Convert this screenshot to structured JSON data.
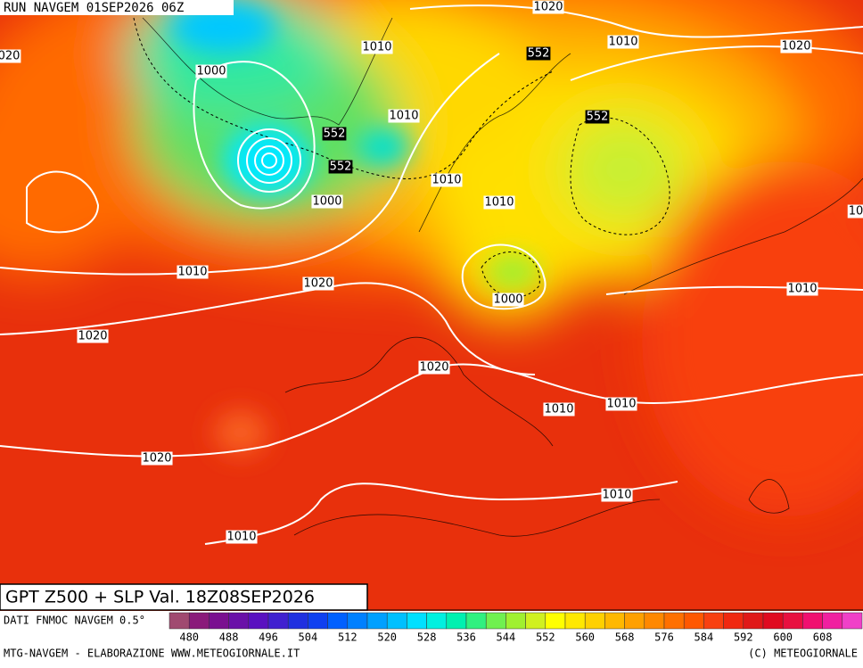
{
  "header": {
    "run": "RUN NAVGEM 01SEP2026 06Z"
  },
  "map": {
    "title": "GPT Z500 + SLP Val. 18Z08SEP2026",
    "contour_labels": [
      "1020",
      "1010",
      "1000",
      "1010",
      "1010",
      "1020",
      "020",
      "552",
      "552",
      "552",
      "552",
      "1010",
      "1000",
      "1010",
      "1010",
      "1020",
      "1000",
      "1010",
      "1020",
      "1020",
      "1010",
      "1010",
      "1020",
      "1010",
      "1010",
      "10"
    ]
  },
  "colorbar": {
    "source": "DATI FNMOC NAVGEM 0.5°",
    "colors": [
      "#a04a70",
      "#8a1a7a",
      "#7a1090",
      "#6a10a8",
      "#5a10c0",
      "#4020d0",
      "#2030e0",
      "#1040f0",
      "#0060ff",
      "#0080ff",
      "#00a0ff",
      "#00c0ff",
      "#00e0ff",
      "#00f0e0",
      "#00f0b0",
      "#30f080",
      "#70f050",
      "#a0f030",
      "#d0f020",
      "#ffff00",
      "#ffe800",
      "#ffd000",
      "#ffb800",
      "#ffa000",
      "#ff8800",
      "#ff7000",
      "#ff5800",
      "#f84010",
      "#f02810",
      "#e01818",
      "#e00a20",
      "#e81040",
      "#f01070",
      "#f020a0",
      "#f040c8"
    ],
    "ticks": [
      480,
      488,
      496,
      504,
      512,
      520,
      528,
      536,
      544,
      552,
      560,
      568,
      576,
      584,
      592,
      600,
      608
    ]
  },
  "footer": {
    "left": "MTG-NAVGEM - ELABORAZIONE WWW.METEOGIORNALE.IT",
    "right": "(C) METEOGIORNALE"
  }
}
